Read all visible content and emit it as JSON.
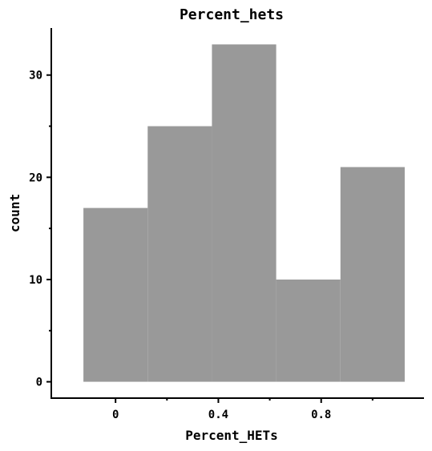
{
  "chart_data": {
    "type": "bar",
    "title": "Percent_hets",
    "xlabel": "Percent_HETs",
    "ylabel": "count",
    "bin_edges": [
      -0.125,
      0.125,
      0.375,
      0.625,
      0.875,
      1.125
    ],
    "values": [
      17,
      25,
      33,
      10,
      21
    ],
    "xlim": [
      -0.25,
      1.2
    ],
    "ylim": [
      -1.6,
      34.6
    ],
    "x_major_ticks": [
      0,
      0.4,
      0.8
    ],
    "x_major_tick_labels": [
      "0",
      "0.4",
      "0.8"
    ],
    "x_minor_ticks": [
      0.2,
      0.6,
      1.0
    ],
    "y_major_ticks": [
      0,
      10,
      20,
      30
    ],
    "y_major_tick_labels": [
      "0",
      "10",
      "20",
      "30"
    ],
    "y_minor_ticks": [
      5,
      15,
      25
    ],
    "bar_color": "#999999",
    "grid": false,
    "legend": "none"
  }
}
